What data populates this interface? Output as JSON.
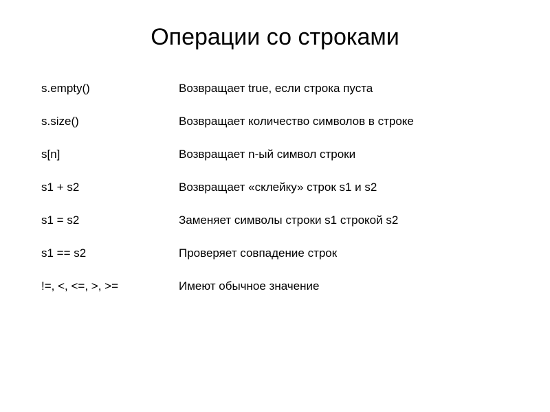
{
  "title": "Операции со строками",
  "rows": [
    {
      "operation": "s.empty()",
      "description": "Возвращает true, если строка пуста"
    },
    {
      "operation": "s.size()",
      "description": "Возвращает количество символов в строке"
    },
    {
      "operation": "s[n]",
      "description": "Возвращает n-ый символ строки"
    },
    {
      "operation": "s1 + s2",
      "description": "Возвращает «склейку» строк s1 и s2"
    },
    {
      "operation": "s1 = s2",
      "description": "Заменяет символы строки s1 строкой s2"
    },
    {
      "operation": "s1 == s2",
      "description": "Проверяет совпадение строк"
    },
    {
      "operation": "!=, <, <=, >, >=",
      "description": "Имеют обычное значение"
    }
  ],
  "styling": {
    "title_fontsize": 34,
    "body_fontsize": 17,
    "title_color": "#000000",
    "text_color": "#000000",
    "background_color": "#ffffff",
    "operation_column_width": 200,
    "row_spacing": 28,
    "font_family": "Arial"
  }
}
